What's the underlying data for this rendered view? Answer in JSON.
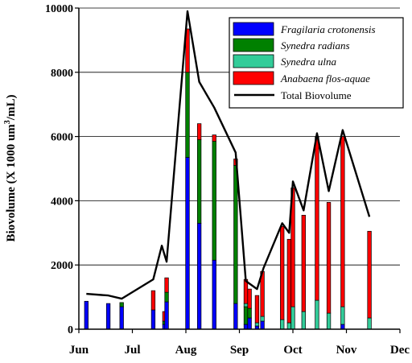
{
  "chart_data": {
    "type": "bar",
    "ylabel_main": "Biovolume (X 1000 um",
    "ylabel_sup": "3",
    "ylabel_end": "/mL)",
    "xlabel": "",
    "yticks": [
      0,
      2000,
      4000,
      6000,
      8000,
      10000
    ],
    "ytick_labels": [
      "0",
      "2000",
      "4000",
      "6000",
      "8000",
      "10000"
    ],
    "xticks": [
      {
        "pos": 0,
        "label": "Jun"
      },
      {
        "pos": 1,
        "label": "Jul"
      },
      {
        "pos": 2,
        "label": "Aug"
      },
      {
        "pos": 3,
        "label": "Sep"
      },
      {
        "pos": 4,
        "label": "Oct"
      },
      {
        "pos": 5,
        "label": "Nov"
      },
      {
        "pos": 6,
        "label": "Dec"
      }
    ],
    "ylim": [
      0,
      10000
    ],
    "xlim": [
      0,
      6
    ],
    "grid": true,
    "legend_position": "top-right",
    "series": [
      {
        "name": "Fragilaria crotonensis",
        "color": "#0000ff"
      },
      {
        "name": "Synedra radians",
        "color": "#008000"
      },
      {
        "name": "Synedra ulna",
        "color": "#33cc99"
      },
      {
        "name": "Anabaena flos-aquae",
        "color": "#ff0000"
      }
    ],
    "line_series": {
      "name": "Total Biovolume",
      "color": "#000000"
    },
    "bars": [
      {
        "x": 0.14,
        "values": [
          870,
          0,
          0,
          0
        ]
      },
      {
        "x": 0.55,
        "values": [
          800,
          0,
          0,
          0
        ]
      },
      {
        "x": 0.8,
        "values": [
          700,
          130,
          0,
          0
        ]
      },
      {
        "x": 1.39,
        "values": [
          600,
          0,
          0,
          600
        ]
      },
      {
        "x": 1.6,
        "values": [
          150,
          100,
          0,
          300
        ]
      },
      {
        "x": 1.64,
        "values": [
          850,
          300,
          0,
          450
        ]
      },
      {
        "x": 2.03,
        "values": [
          5350,
          2650,
          0,
          1350
        ]
      },
      {
        "x": 2.25,
        "values": [
          3300,
          2600,
          0,
          500
        ]
      },
      {
        "x": 2.53,
        "values": [
          2150,
          3700,
          0,
          200
        ]
      },
      {
        "x": 2.93,
        "values": [
          800,
          4300,
          0,
          200
        ]
      },
      {
        "x": 3.12,
        "values": [
          150,
          550,
          100,
          750
        ]
      },
      {
        "x": 3.19,
        "values": [
          350,
          300,
          0,
          600
        ]
      },
      {
        "x": 3.33,
        "values": [
          100,
          0,
          100,
          850
        ]
      },
      {
        "x": 3.43,
        "values": [
          250,
          0,
          150,
          1400
        ]
      },
      {
        "x": 3.8,
        "values": [
          0,
          0,
          300,
          2900
        ]
      },
      {
        "x": 3.93,
        "values": [
          0,
          0,
          200,
          2600
        ]
      },
      {
        "x": 4.0,
        "values": [
          0,
          0,
          700,
          3700
        ]
      },
      {
        "x": 4.2,
        "values": [
          0,
          0,
          550,
          3000
        ]
      },
      {
        "x": 4.45,
        "values": [
          0,
          0,
          900,
          5100
        ]
      },
      {
        "x": 4.67,
        "values": [
          0,
          0,
          500,
          3450
        ]
      },
      {
        "x": 4.93,
        "values": [
          150,
          0,
          550,
          5300
        ]
      },
      {
        "x": 5.43,
        "values": [
          0,
          0,
          350,
          2700
        ]
      }
    ],
    "total_line": {
      "x": [
        0.14,
        0.55,
        0.8,
        1.39,
        1.55,
        1.64,
        2.03,
        2.25,
        2.53,
        2.93,
        3.12,
        3.33,
        3.45,
        3.8,
        3.93,
        4.0,
        4.2,
        4.45,
        4.67,
        4.93,
        5.43
      ],
      "y": [
        1100,
        1050,
        950,
        1550,
        2600,
        2100,
        9900,
        7700,
        6900,
        5500,
        1500,
        1250,
        1900,
        3300,
        3000,
        4600,
        3700,
        6100,
        4300,
        6200,
        3500
      ]
    }
  }
}
